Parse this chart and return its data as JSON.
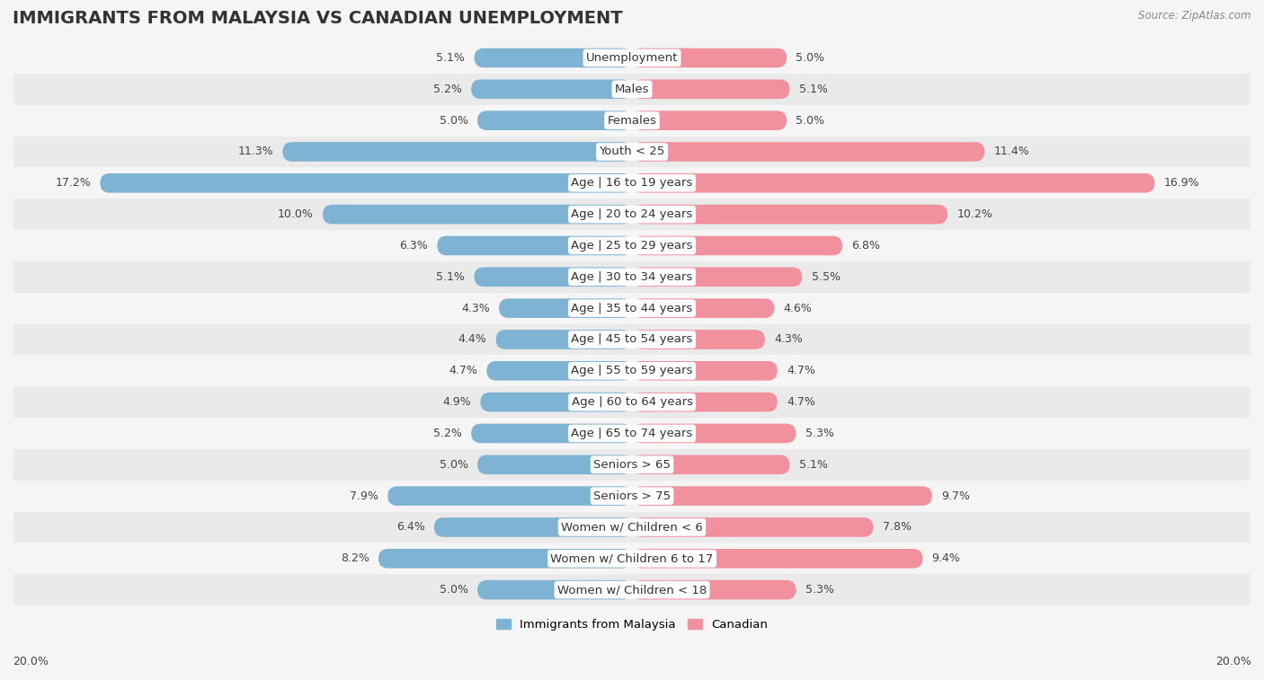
{
  "title": "IMMIGRANTS FROM MALAYSIA VS CANADIAN UNEMPLOYMENT",
  "source": "Source: ZipAtlas.com",
  "categories": [
    "Unemployment",
    "Males",
    "Females",
    "Youth < 25",
    "Age | 16 to 19 years",
    "Age | 20 to 24 years",
    "Age | 25 to 29 years",
    "Age | 30 to 34 years",
    "Age | 35 to 44 years",
    "Age | 45 to 54 years",
    "Age | 55 to 59 years",
    "Age | 60 to 64 years",
    "Age | 65 to 74 years",
    "Seniors > 65",
    "Seniors > 75",
    "Women w/ Children < 6",
    "Women w/ Children 6 to 17",
    "Women w/ Children < 18"
  ],
  "malaysia_values": [
    5.1,
    5.2,
    5.0,
    11.3,
    17.2,
    10.0,
    6.3,
    5.1,
    4.3,
    4.4,
    4.7,
    4.9,
    5.2,
    5.0,
    7.9,
    6.4,
    8.2,
    5.0
  ],
  "canadian_values": [
    5.0,
    5.1,
    5.0,
    11.4,
    16.9,
    10.2,
    6.8,
    5.5,
    4.6,
    4.3,
    4.7,
    4.7,
    5.3,
    5.1,
    9.7,
    7.8,
    9.4,
    5.3
  ],
  "malaysia_color": "#7fb3d3",
  "canadian_color": "#f1919e",
  "malaysia_label": "Immigrants from Malaysia",
  "canadian_label": "Canadian",
  "row_colors": [
    "#f5f5f5",
    "#eaeaea"
  ],
  "xlim": 20.0,
  "bar_height": 0.62,
  "title_fontsize": 14,
  "label_fontsize": 9.5,
  "value_fontsize": 9,
  "tick_fontsize": 9
}
